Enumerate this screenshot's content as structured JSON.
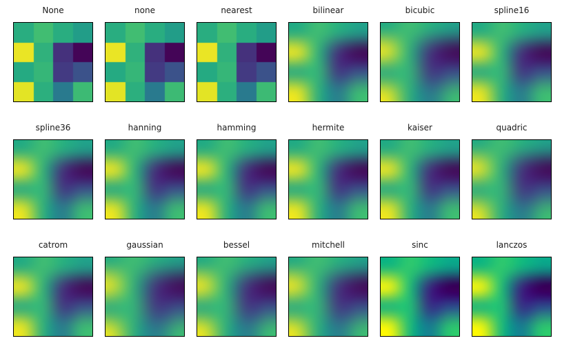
{
  "figure": {
    "background": "#ffffff",
    "title_color": "#1a1a1a",
    "spine_color": "#000000"
  },
  "chart_data": {
    "type": "heatmap",
    "title": "",
    "description": "Same 4x4 data grid shown with 18 different image interpolation methods; axes ticks off, viridis colormap",
    "colormap": "viridis",
    "colormap_anchors": [
      {
        "t": 0.0,
        "hex": "#440154"
      },
      {
        "t": 0.1,
        "hex": "#482475"
      },
      {
        "t": 0.2,
        "hex": "#414487"
      },
      {
        "t": 0.3,
        "hex": "#355f8d"
      },
      {
        "t": 0.4,
        "hex": "#2a788e"
      },
      {
        "t": 0.5,
        "hex": "#21918c"
      },
      {
        "t": 0.6,
        "hex": "#22a884"
      },
      {
        "t": 0.7,
        "hex": "#44bf70"
      },
      {
        "t": 0.8,
        "hex": "#7ad151"
      },
      {
        "t": 0.9,
        "hex": "#bddf26"
      },
      {
        "t": 1.0,
        "hex": "#fde725"
      }
    ],
    "grid_shape": [
      4,
      4
    ],
    "value_range": [
      0,
      1
    ],
    "grid_values": [
      [
        0.62,
        0.69,
        0.62,
        0.55
      ],
      [
        0.97,
        0.64,
        0.14,
        0.01
      ],
      [
        0.61,
        0.66,
        0.17,
        0.25
      ],
      [
        0.96,
        0.63,
        0.41,
        0.68
      ]
    ],
    "layout": {
      "rows": 3,
      "cols": 6,
      "axes": "off",
      "grid": "off",
      "legend": "none"
    },
    "panels": [
      {
        "label": "None",
        "render": "pixelated"
      },
      {
        "label": "none",
        "render": "pixelated"
      },
      {
        "label": "nearest",
        "render": "pixelated"
      },
      {
        "label": "bilinear",
        "render": "smooth"
      },
      {
        "label": "bicubic",
        "render": "soft"
      },
      {
        "label": "spline16",
        "render": "smooth"
      },
      {
        "label": "spline36",
        "render": "smooth"
      },
      {
        "label": "hanning",
        "render": "smooth"
      },
      {
        "label": "hamming",
        "render": "smooth"
      },
      {
        "label": "hermite",
        "render": "smooth"
      },
      {
        "label": "kaiser",
        "render": "smooth"
      },
      {
        "label": "quadric",
        "render": "soft"
      },
      {
        "label": "catrom",
        "render": "smooth"
      },
      {
        "label": "gaussian",
        "render": "blurry"
      },
      {
        "label": "bessel",
        "render": "soft"
      },
      {
        "label": "mitchell",
        "render": "soft"
      },
      {
        "label": "sinc",
        "render": "crisp"
      },
      {
        "label": "lanczos",
        "render": "crisp"
      }
    ]
  }
}
